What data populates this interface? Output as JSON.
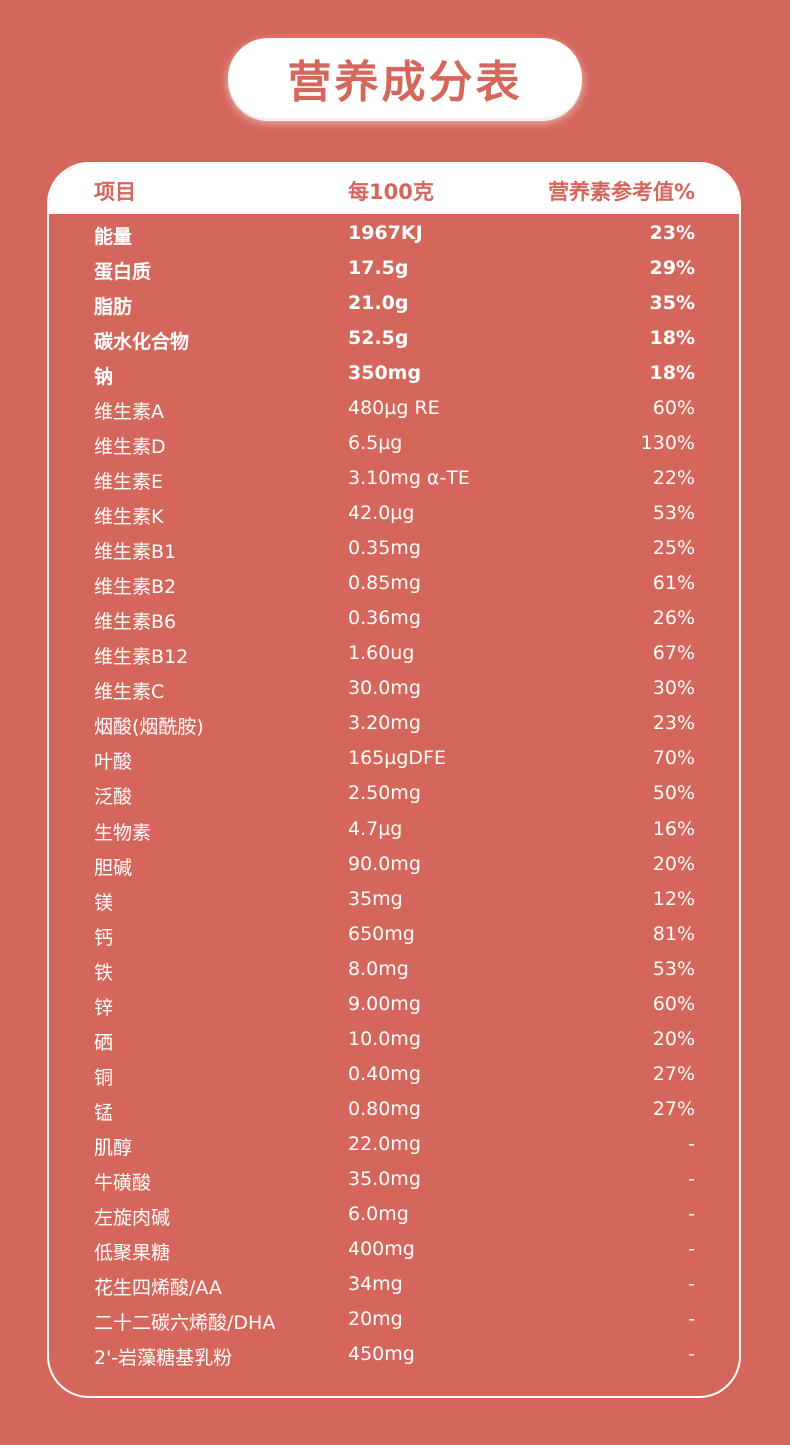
{
  "title": "营养成分表",
  "colors": {
    "background": "#d5665b",
    "header_bg": "#ffffff",
    "text": "#ffffff"
  },
  "header": {
    "item": "项目",
    "per100": "每100克",
    "nrv": "营养素参考值%"
  },
  "rows": [
    {
      "name": "能量",
      "value": "1967KJ",
      "nrv": "23%",
      "bold": true
    },
    {
      "name": "蛋白质",
      "value": "17.5g",
      "nrv": "29%",
      "bold": true
    },
    {
      "name": "脂肪",
      "value": "21.0g",
      "nrv": "35%",
      "bold": true
    },
    {
      "name": "碳水化合物",
      "value": "52.5g",
      "nrv": "18%",
      "bold": true
    },
    {
      "name": "钠",
      "value": "350mg",
      "nrv": "18%",
      "bold": true
    },
    {
      "name": "维生素A",
      "value": "480µg RE",
      "nrv": "60%"
    },
    {
      "name": "维生素D",
      "value": "6.5µg",
      "nrv": "130%"
    },
    {
      "name": "维生素E",
      "value": "3.10mg α-TE",
      "nrv": "22%"
    },
    {
      "name": "维生素K",
      "value": "42.0µg",
      "nrv": "53%"
    },
    {
      "name": "维生素B1",
      "value": "0.35mg",
      "nrv": "25%"
    },
    {
      "name": "维生素B2",
      "value": "0.85mg",
      "nrv": "61%"
    },
    {
      "name": "维生素B6",
      "value": "0.36mg",
      "nrv": "26%"
    },
    {
      "name": "维生素B12",
      "value": "1.60ug",
      "nrv": "67%"
    },
    {
      "name": "维生素C",
      "value": "30.0mg",
      "nrv": "30%"
    },
    {
      "name": "烟酸(烟酰胺)",
      "value": "3.20mg",
      "nrv": "23%"
    },
    {
      "name": "叶酸",
      "value": "165µgDFE",
      "nrv": "70%"
    },
    {
      "name": "泛酸",
      "value": "2.50mg",
      "nrv": "50%"
    },
    {
      "name": "生物素",
      "value": "4.7µg",
      "nrv": "16%"
    },
    {
      "name": "胆碱",
      "value": "90.0mg",
      "nrv": "20%"
    },
    {
      "name": "镁",
      "value": "35mg",
      "nrv": "12%"
    },
    {
      "name": "钙",
      "value": "650mg",
      "nrv": "81%"
    },
    {
      "name": "铁",
      "value": "8.0mg",
      "nrv": "53%"
    },
    {
      "name": "锌",
      "value": "9.00mg",
      "nrv": "60%"
    },
    {
      "name": "硒",
      "value": "10.0mg",
      "nrv": "20%"
    },
    {
      "name": "铜",
      "value": "0.40mg",
      "nrv": "27%"
    },
    {
      "name": "锰",
      "value": "0.80mg",
      "nrv": "27%"
    },
    {
      "name": "肌醇",
      "value": "22.0mg",
      "nrv": "-"
    },
    {
      "name": "牛磺酸",
      "value": "35.0mg",
      "nrv": "-"
    },
    {
      "name": "左旋肉碱",
      "value": "6.0mg",
      "nrv": "-"
    },
    {
      "name": "低聚果糖",
      "value": "400mg",
      "nrv": "-"
    },
    {
      "name": "花生四烯酸/AA",
      "value": "34mg",
      "nrv": "-"
    },
    {
      "name": "二十二碳六烯酸/DHA",
      "value": "20mg",
      "nrv": "-"
    },
    {
      "name": "2'-岩藻糖基乳粉",
      "value": "450mg",
      "nrv": "-"
    }
  ]
}
